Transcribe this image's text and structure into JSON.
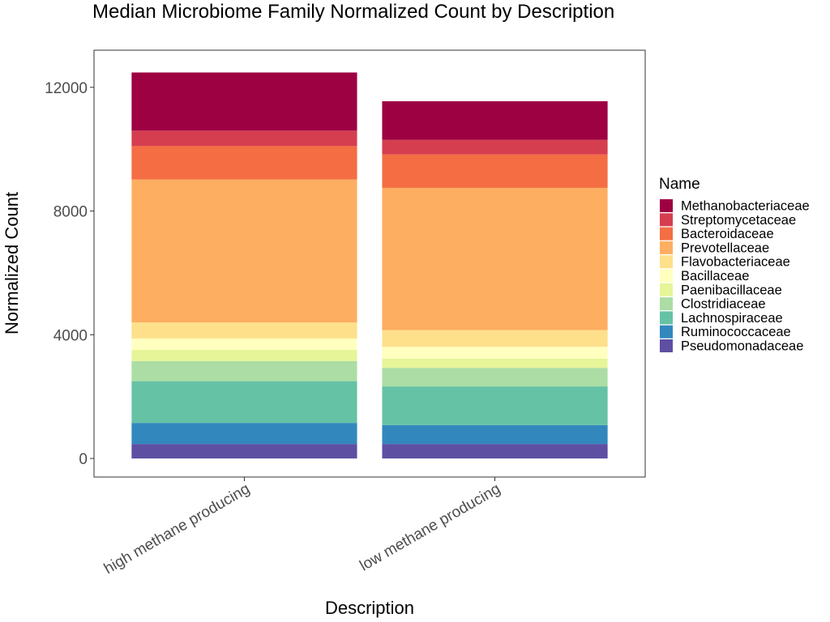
{
  "chart_data": {
    "type": "bar",
    "stacked": true,
    "title": "Median Microbiome Family Normalized Count by Description",
    "xlabel": "Description",
    "ylabel": "Normalized Count",
    "categories": [
      "high methane producing",
      "low methane producing"
    ],
    "yticks": [
      0,
      4000,
      8000,
      12000
    ],
    "ylim": [
      -600,
      13200
    ],
    "grid": false,
    "legend": {
      "title": "Name",
      "position": "right"
    },
    "series": [
      {
        "name": "Pseudomonadaceae",
        "color": "#5E4FA2",
        "values": [
          470,
          470
        ]
      },
      {
        "name": "Ruminococcaceae",
        "color": "#3288BD",
        "values": [
          680,
          610
        ]
      },
      {
        "name": "Lachnospiraceae",
        "color": "#66C2A5",
        "values": [
          1350,
          1250
        ]
      },
      {
        "name": "Clostridiaceae",
        "color": "#ABDDA4",
        "values": [
          650,
          600
        ]
      },
      {
        "name": "Paenibacillaceae",
        "color": "#E6F598",
        "values": [
          360,
          300
        ]
      },
      {
        "name": "Bacillaceae",
        "color": "#FFFFBF",
        "values": [
          370,
          380
        ]
      },
      {
        "name": "Flavobacteriaceae",
        "color": "#FEE08B",
        "values": [
          520,
          540
        ]
      },
      {
        "name": "Prevotellaceae",
        "color": "#FDAE61",
        "values": [
          4620,
          4600
        ]
      },
      {
        "name": "Bacteroidaceae",
        "color": "#F46D43",
        "values": [
          1080,
          1080
        ]
      },
      {
        "name": "Streptomycetaceae",
        "color": "#D53E4F",
        "values": [
          500,
          470
        ]
      },
      {
        "name": "Methanobacteriaceae",
        "color": "#9E0142",
        "values": [
          1880,
          1250
        ]
      }
    ]
  }
}
